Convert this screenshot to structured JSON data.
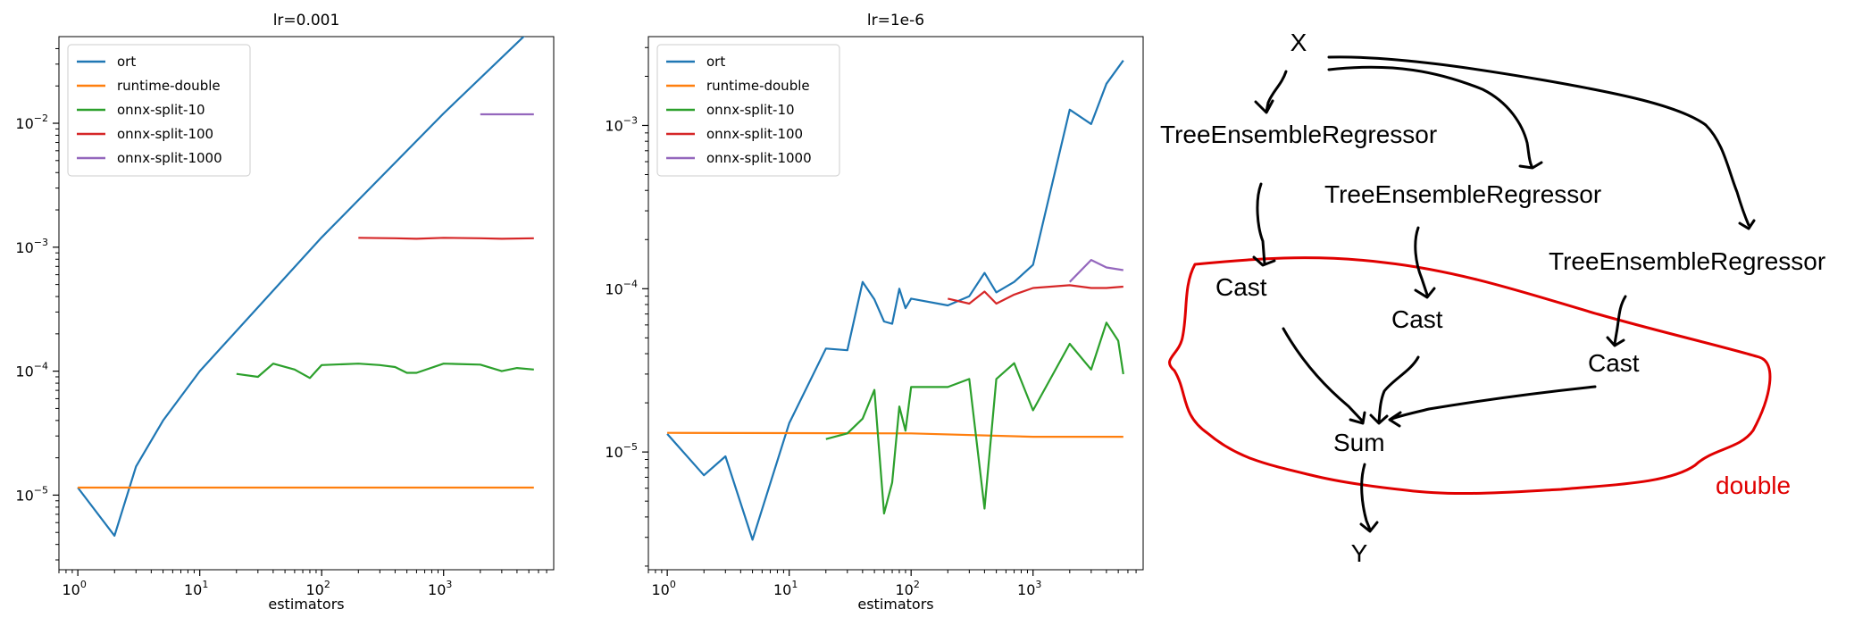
{
  "chart_data": [
    {
      "type": "line",
      "title": "lr=0.001",
      "xlabel": "estimators",
      "ylabel": "",
      "xscale": "log",
      "yscale": "log",
      "xlim": [
        0.7,
        8000
      ],
      "ylim": [
        2.5e-06,
        0.05
      ],
      "x_ticks": [
        1,
        10,
        100,
        1000
      ],
      "x_tick_labels": [
        {
          "base": "10",
          "exp": "0"
        },
        {
          "base": "10",
          "exp": "1"
        },
        {
          "base": "10",
          "exp": "2"
        },
        {
          "base": "10",
          "exp": "3"
        }
      ],
      "y_ticks": [
        1e-05,
        0.0001,
        0.001,
        0.01
      ],
      "y_tick_labels": [
        {
          "base": "10",
          "exp": "−5"
        },
        {
          "base": "10",
          "exp": "−4"
        },
        {
          "base": "10",
          "exp": "−3"
        },
        {
          "base": "10",
          "exp": "−2"
        }
      ],
      "legend_position": "upper left",
      "series": [
        {
          "name": "ort",
          "color": "#1f77b4",
          "x": [
            1,
            2,
            3,
            5,
            10,
            100,
            1000,
            5500
          ],
          "y": [
            1.15e-05,
            4.7e-06,
            1.7e-05,
            4e-05,
            0.0001,
            0.0012,
            0.012,
            0.06
          ]
        },
        {
          "name": "runtime-double",
          "color": "#ff7f0e",
          "x": [
            1,
            5500
          ],
          "y": [
            1.15e-05,
            1.15e-05
          ]
        },
        {
          "name": "onnx-split-10",
          "color": "#2ca02c",
          "x": [
            20,
            30,
            40,
            60,
            80,
            90,
            100,
            200,
            300,
            400,
            500,
            600,
            1000,
            2000,
            3000,
            4000,
            5500
          ],
          "y": [
            9.5e-05,
            9e-05,
            0.000115,
            0.000103,
            8.8e-05,
            0.0001,
            0.000112,
            0.000115,
            0.000112,
            0.000108,
            9.7e-05,
            9.7e-05,
            0.000115,
            0.000113,
            0.0001,
            0.000106,
            0.000103
          ]
        },
        {
          "name": "onnx-split-100",
          "color": "#d62728",
          "x": [
            200,
            400,
            600,
            1000,
            2000,
            3000,
            5500
          ],
          "y": [
            0.00119,
            0.00118,
            0.00117,
            0.00119,
            0.00118,
            0.00117,
            0.00118
          ]
        },
        {
          "name": "onnx-split-1000",
          "color": "#9467bd",
          "x": [
            2000,
            5500
          ],
          "y": [
            0.0118,
            0.0118
          ]
        }
      ]
    },
    {
      "type": "line",
      "title": "lr=1e-6",
      "xlabel": "estimators",
      "ylabel": "",
      "xscale": "log",
      "yscale": "log",
      "xlim": [
        0.7,
        8000
      ],
      "ylim": [
        1.9e-06,
        0.0035
      ],
      "x_ticks": [
        1,
        10,
        100,
        1000
      ],
      "x_tick_labels": [
        {
          "base": "10",
          "exp": "0"
        },
        {
          "base": "10",
          "exp": "1"
        },
        {
          "base": "10",
          "exp": "2"
        },
        {
          "base": "10",
          "exp": "3"
        }
      ],
      "y_ticks": [
        1e-05,
        0.0001,
        0.001
      ],
      "y_tick_labels": [
        {
          "base": "10",
          "exp": "−5"
        },
        {
          "base": "10",
          "exp": "−4"
        },
        {
          "base": "10",
          "exp": "−3"
        }
      ],
      "legend_position": "upper left",
      "series": [
        {
          "name": "ort",
          "color": "#1f77b4",
          "x": [
            1,
            2,
            3,
            5,
            10,
            20,
            30,
            40,
            50,
            60,
            70,
            80,
            90,
            100,
            200,
            300,
            400,
            500,
            700,
            1000,
            2000,
            3000,
            4000,
            5500
          ],
          "y": [
            1.29e-05,
            7.2e-06,
            9.4e-06,
            2.9e-06,
            1.5e-05,
            4.3e-05,
            4.2e-05,
            0.00011,
            8.6e-05,
            6.3e-05,
            6.1e-05,
            0.0001,
            7.6e-05,
            8.7e-05,
            7.9e-05,
            9e-05,
            0.000125,
            9.5e-05,
            0.00011,
            0.00014,
            0.00125,
            0.00102,
            0.0018,
            0.0025
          ]
        },
        {
          "name": "runtime-double",
          "color": "#ff7f0e",
          "x": [
            1,
            100,
            1000,
            5500
          ],
          "y": [
            1.31e-05,
            1.3e-05,
            1.24e-05,
            1.24e-05
          ]
        },
        {
          "name": "onnx-split-10",
          "color": "#2ca02c",
          "x": [
            20,
            30,
            40,
            50,
            60,
            70,
            80,
            90,
            100,
            200,
            300,
            400,
            500,
            700,
            1000,
            2000,
            3000,
            4000,
            5000,
            5500
          ],
          "y": [
            1.2e-05,
            1.3e-05,
            1.6e-05,
            2.4e-05,
            4.2e-06,
            6.5e-06,
            1.9e-05,
            1.35e-05,
            2.5e-05,
            2.5e-05,
            2.8e-05,
            4.5e-06,
            2.8e-05,
            3.5e-05,
            1.8e-05,
            4.6e-05,
            3.2e-05,
            6.2e-05,
            4.8e-05,
            3e-05
          ]
        },
        {
          "name": "onnx-split-100",
          "color": "#d62728",
          "x": [
            200,
            300,
            400,
            500,
            700,
            1000,
            2000,
            3000,
            4000,
            5500
          ],
          "y": [
            8.7e-05,
            8.1e-05,
            9.6e-05,
            8.1e-05,
            9.2e-05,
            0.000101,
            0.000105,
            0.000101,
            0.000101,
            0.000103
          ]
        },
        {
          "name": "onnx-split-1000",
          "color": "#9467bd",
          "x": [
            2000,
            3000,
            4000,
            5500
          ],
          "y": [
            0.00011,
            0.00015,
            0.000135,
            0.00013
          ]
        }
      ]
    }
  ],
  "diagram": {
    "nodes": [
      {
        "id": "X",
        "label": "X"
      },
      {
        "id": "ter1",
        "label": "TreeEnsembleRegressor"
      },
      {
        "id": "ter2",
        "label": "TreeEnsembleRegressor"
      },
      {
        "id": "ter3",
        "label": "TreeEnsembleRegressor"
      },
      {
        "id": "cast1",
        "label": "Cast"
      },
      {
        "id": "cast2",
        "label": "Cast"
      },
      {
        "id": "cast3",
        "label": "Cast"
      },
      {
        "id": "sum",
        "label": "Sum"
      },
      {
        "id": "Y",
        "label": "Y"
      }
    ],
    "edges": [
      [
        "X",
        "ter1"
      ],
      [
        "X",
        "ter2"
      ],
      [
        "X",
        "ter3"
      ],
      [
        "ter1",
        "cast1"
      ],
      [
        "ter2",
        "cast2"
      ],
      [
        "ter3",
        "cast3"
      ],
      [
        "cast1",
        "sum"
      ],
      [
        "cast2",
        "sum"
      ],
      [
        "cast3",
        "sum"
      ],
      [
        "sum",
        "Y"
      ]
    ],
    "region_label": "double",
    "region_color": "#e00000"
  }
}
